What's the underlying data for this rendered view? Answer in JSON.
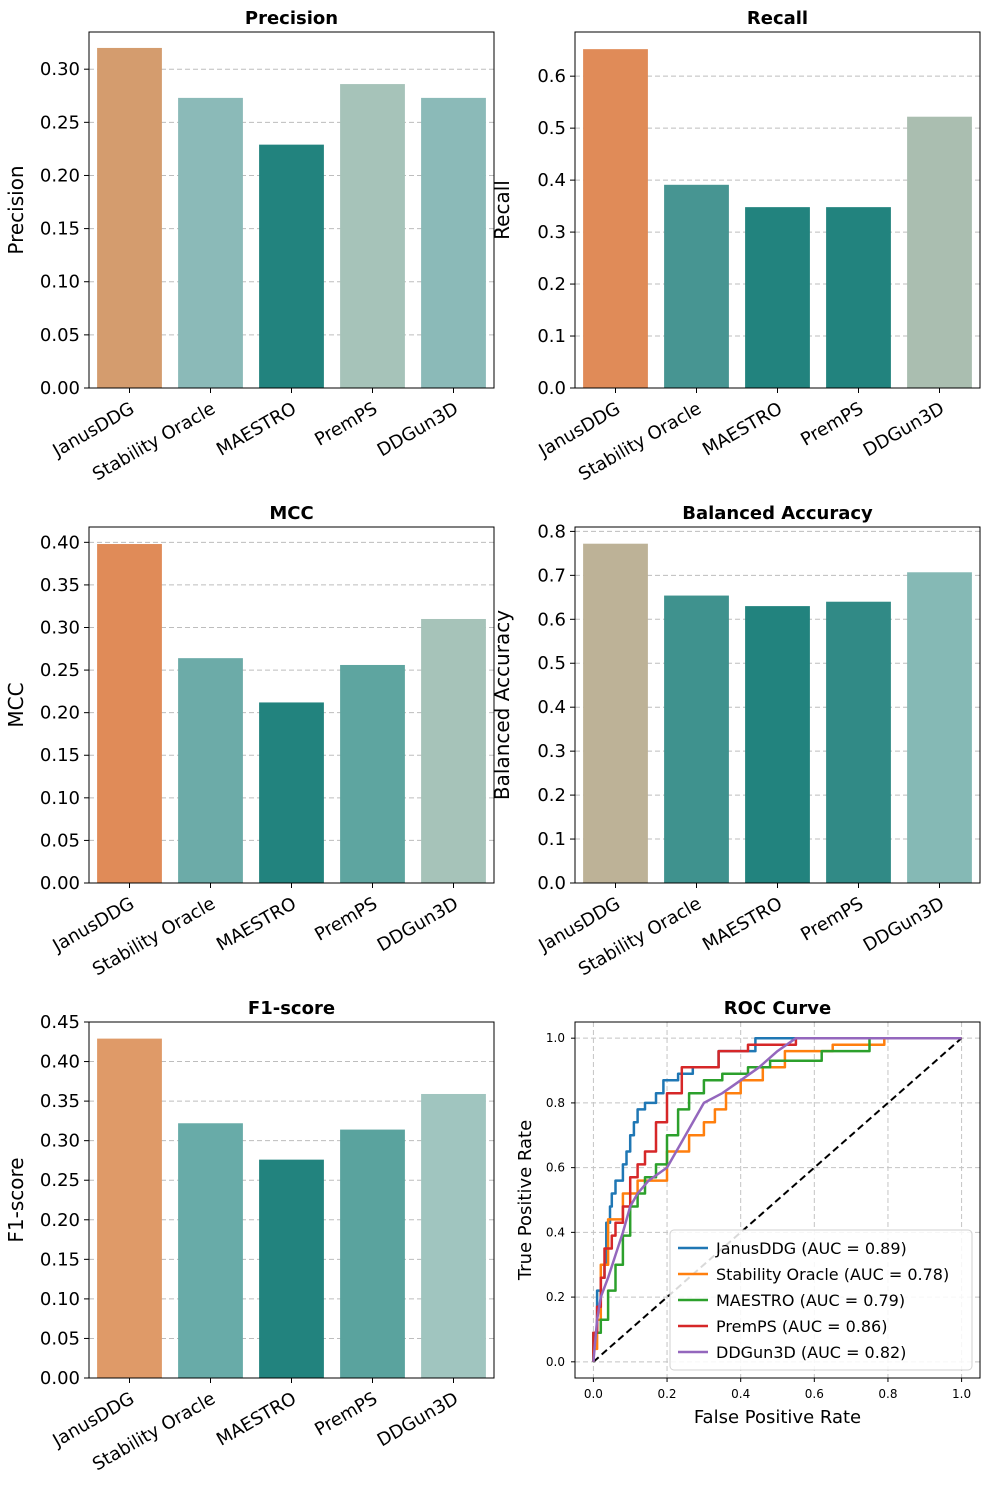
{
  "chart_data": [
    {
      "type": "bar",
      "title": "Precision",
      "ylabel": "Precision",
      "xlabel": "",
      "categories": [
        "JanusDDG",
        "Stability Oracle",
        "MAESTRO",
        "PremPS",
        "DDGun3D"
      ],
      "values": [
        0.32,
        0.273,
        0.229,
        0.286,
        0.273
      ],
      "colors": [
        "#d49c6e",
        "#8bbab8",
        "#22837e",
        "#a6c3b9",
        "#8bbab8"
      ],
      "ylim": [
        0,
        0.335
      ],
      "yticks": [
        0.0,
        0.05,
        0.1,
        0.15,
        0.2,
        0.25,
        0.3
      ],
      "ytick_labels": [
        "0.00",
        "0.05",
        "0.10",
        "0.15",
        "0.20",
        "0.25",
        "0.30"
      ],
      "grid": "y-dashed"
    },
    {
      "type": "bar",
      "title": "Recall",
      "ylabel": "Recall",
      "xlabel": "",
      "categories": [
        "JanusDDG",
        "Stability Oracle",
        "MAESTRO",
        "PremPS",
        "DDGun3D"
      ],
      "values": [
        0.652,
        0.391,
        0.348,
        0.348,
        0.522
      ],
      "colors": [
        "#e08b58",
        "#479592",
        "#22837e",
        "#22837e",
        "#aabeb0"
      ],
      "ylim": [
        0,
        0.685
      ],
      "yticks": [
        0.0,
        0.1,
        0.2,
        0.3,
        0.4,
        0.5,
        0.6
      ],
      "ytick_labels": [
        "0.0",
        "0.1",
        "0.2",
        "0.3",
        "0.4",
        "0.5",
        "0.6"
      ],
      "grid": "y-dashed"
    },
    {
      "type": "bar",
      "title": "MCC",
      "ylabel": "MCC",
      "xlabel": "",
      "categories": [
        "JanusDDG",
        "Stability Oracle",
        "MAESTRO",
        "PremPS",
        "DDGun3D"
      ],
      "values": [
        0.398,
        0.264,
        0.212,
        0.256,
        0.31
      ],
      "colors": [
        "#e08b58",
        "#6caba8",
        "#22837e",
        "#5ea5a0",
        "#a6c3b9"
      ],
      "ylim": [
        0,
        0.418
      ],
      "yticks": [
        0.0,
        0.05,
        0.1,
        0.15,
        0.2,
        0.25,
        0.3,
        0.35,
        0.4
      ],
      "ytick_labels": [
        "0.00",
        "0.05",
        "0.10",
        "0.15",
        "0.20",
        "0.25",
        "0.30",
        "0.35",
        "0.40"
      ],
      "grid": "y-dashed"
    },
    {
      "type": "bar",
      "title": "Balanced Accuracy",
      "ylabel": "Balanced Accuracy",
      "xlabel": "",
      "categories": [
        "JanusDDG",
        "Stability Oracle",
        "MAESTRO",
        "PremPS",
        "DDGun3D"
      ],
      "values": [
        0.772,
        0.654,
        0.63,
        0.64,
        0.707
      ],
      "colors": [
        "#bdb297",
        "#3f928e",
        "#22837e",
        "#318a86",
        "#85b9b5"
      ],
      "ylim": [
        0,
        0.81
      ],
      "yticks": [
        0.0,
        0.1,
        0.2,
        0.3,
        0.4,
        0.5,
        0.6,
        0.7,
        0.8
      ],
      "ytick_labels": [
        "0.0",
        "0.1",
        "0.2",
        "0.3",
        "0.4",
        "0.5",
        "0.6",
        "0.7",
        "0.8"
      ],
      "grid": "y-dashed"
    },
    {
      "type": "bar",
      "title": "F1-score",
      "ylabel": "F1-score",
      "xlabel": "",
      "categories": [
        "JanusDDG",
        "Stability Oracle",
        "MAESTRO",
        "PremPS",
        "DDGun3D"
      ],
      "values": [
        0.429,
        0.322,
        0.276,
        0.314,
        0.359
      ],
      "colors": [
        "#df9a68",
        "#68aba8",
        "#22837e",
        "#5aa39e",
        "#a0c5bf"
      ],
      "ylim": [
        0,
        0.45
      ],
      "yticks": [
        0.0,
        0.05,
        0.1,
        0.15,
        0.2,
        0.25,
        0.3,
        0.35,
        0.4,
        0.45
      ],
      "ytick_labels": [
        "0.00",
        "0.05",
        "0.10",
        "0.15",
        "0.20",
        "0.25",
        "0.30",
        "0.35",
        "0.40",
        "0.45"
      ],
      "grid": "y-dashed"
    },
    {
      "type": "line",
      "title": "ROC Curve",
      "xlabel": "False Positive Rate",
      "ylabel": "True Positive Rate",
      "xlim": [
        -0.05,
        1.05
      ],
      "ylim": [
        -0.05,
        1.05
      ],
      "xticks": [
        0.0,
        0.2,
        0.4,
        0.6,
        0.8,
        1.0
      ],
      "xtick_labels": [
        "0.0",
        "0.2",
        "0.4",
        "0.6",
        "0.8",
        "1.0"
      ],
      "yticks": [
        0.0,
        0.2,
        0.4,
        0.6,
        0.8,
        1.0
      ],
      "ytick_labels": [
        "0.0",
        "0.2",
        "0.4",
        "0.6",
        "0.8",
        "1.0"
      ],
      "grid": "both-dashed",
      "legend_position": "bottom-right",
      "diagonal": {
        "x": [
          0,
          1
        ],
        "y": [
          0,
          1
        ],
        "color": "#000000",
        "style": "dashed"
      },
      "series": [
        {
          "name": "JanusDDG",
          "auc_label": "JanusDDG (AUC = 0.89)",
          "color": "#1f77b4",
          "x": [
            0,
            0,
            0.01,
            0.01,
            0.02,
            0.02,
            0.03,
            0.03,
            0.035,
            0.035,
            0.045,
            0.045,
            0.05,
            0.05,
            0.06,
            0.06,
            0.08,
            0.08,
            0.09,
            0.09,
            0.1,
            0.1,
            0.11,
            0.11,
            0.12,
            0.12,
            0.14,
            0.14,
            0.17,
            0.17,
            0.19,
            0.19,
            0.23,
            0.23,
            0.27,
            0.27,
            0.34,
            0.34,
            0.44,
            0.44,
            1.0
          ],
          "y": [
            0,
            0.09,
            0.09,
            0.22,
            0.22,
            0.26,
            0.26,
            0.3,
            0.3,
            0.43,
            0.43,
            0.48,
            0.48,
            0.52,
            0.52,
            0.56,
            0.56,
            0.61,
            0.61,
            0.65,
            0.65,
            0.7,
            0.7,
            0.74,
            0.74,
            0.78,
            0.78,
            0.8,
            0.8,
            0.83,
            0.83,
            0.87,
            0.87,
            0.89,
            0.89,
            0.91,
            0.91,
            0.96,
            0.96,
            1.0,
            1.0
          ]
        },
        {
          "name": "Stability Oracle",
          "auc_label": "Stability Oracle (AUC = 0.78)",
          "color": "#ff7f0e",
          "x": [
            0,
            0,
            0.01,
            0.01,
            0.02,
            0.02,
            0.04,
            0.04,
            0.08,
            0.08,
            0.12,
            0.12,
            0.2,
            0.2,
            0.26,
            0.26,
            0.3,
            0.3,
            0.33,
            0.33,
            0.36,
            0.36,
            0.4,
            0.4,
            0.46,
            0.46,
            0.52,
            0.52,
            0.65,
            0.65,
            0.79,
            0.79,
            1.0
          ],
          "y": [
            0,
            0.04,
            0.04,
            0.13,
            0.13,
            0.3,
            0.3,
            0.44,
            0.44,
            0.52,
            0.52,
            0.56,
            0.56,
            0.65,
            0.65,
            0.7,
            0.7,
            0.74,
            0.74,
            0.78,
            0.78,
            0.83,
            0.83,
            0.87,
            0.87,
            0.91,
            0.91,
            0.96,
            0.96,
            0.98,
            0.98,
            1.0,
            1.0
          ]
        },
        {
          "name": "MAESTRO",
          "auc_label": "MAESTRO (AUC = 0.79)",
          "color": "#2ca02c",
          "x": [
            0,
            0,
            0.02,
            0.02,
            0.04,
            0.04,
            0.06,
            0.06,
            0.08,
            0.08,
            0.1,
            0.1,
            0.12,
            0.12,
            0.14,
            0.14,
            0.17,
            0.17,
            0.2,
            0.2,
            0.23,
            0.23,
            0.26,
            0.26,
            0.3,
            0.3,
            0.35,
            0.35,
            0.42,
            0.42,
            0.48,
            0.48,
            0.62,
            0.62,
            0.75,
            0.75,
            1.0
          ],
          "y": [
            0,
            0.09,
            0.09,
            0.13,
            0.13,
            0.22,
            0.22,
            0.3,
            0.3,
            0.39,
            0.39,
            0.48,
            0.48,
            0.52,
            0.52,
            0.57,
            0.57,
            0.61,
            0.61,
            0.7,
            0.7,
            0.78,
            0.78,
            0.83,
            0.83,
            0.87,
            0.87,
            0.89,
            0.89,
            0.91,
            0.91,
            0.93,
            0.93,
            0.96,
            0.96,
            1.0,
            1.0
          ]
        },
        {
          "name": "PremPS",
          "auc_label": "PremPS (AUC = 0.86)",
          "color": "#d62728",
          "x": [
            0,
            0,
            0.01,
            0.01,
            0.02,
            0.02,
            0.03,
            0.03,
            0.05,
            0.05,
            0.06,
            0.06,
            0.08,
            0.08,
            0.1,
            0.1,
            0.12,
            0.12,
            0.14,
            0.14,
            0.17,
            0.17,
            0.2,
            0.2,
            0.24,
            0.24,
            0.34,
            0.34,
            0.42,
            0.42,
            0.55,
            0.55,
            1.0
          ],
          "y": [
            0,
            0.09,
            0.09,
            0.17,
            0.17,
            0.26,
            0.26,
            0.35,
            0.35,
            0.39,
            0.39,
            0.43,
            0.43,
            0.48,
            0.48,
            0.57,
            0.57,
            0.61,
            0.61,
            0.65,
            0.65,
            0.74,
            0.74,
            0.83,
            0.83,
            0.91,
            0.91,
            0.96,
            0.96,
            0.98,
            0.98,
            1.0,
            1.0
          ]
        },
        {
          "name": "DDGun3D",
          "auc_label": "DDGun3D (AUC = 0.82)",
          "color": "#9467bd",
          "x": [
            0,
            0.01,
            0.02,
            0.04,
            0.06,
            0.08,
            0.1,
            0.12,
            0.15,
            0.2,
            0.25,
            0.3,
            0.35,
            0.4,
            0.45,
            0.5,
            0.55,
            0.65,
            1.0
          ],
          "y": [
            0,
            0.13,
            0.2,
            0.26,
            0.33,
            0.4,
            0.48,
            0.52,
            0.56,
            0.6,
            0.7,
            0.8,
            0.83,
            0.87,
            0.91,
            0.96,
            1.0,
            1.0,
            1.0
          ]
        }
      ]
    }
  ]
}
